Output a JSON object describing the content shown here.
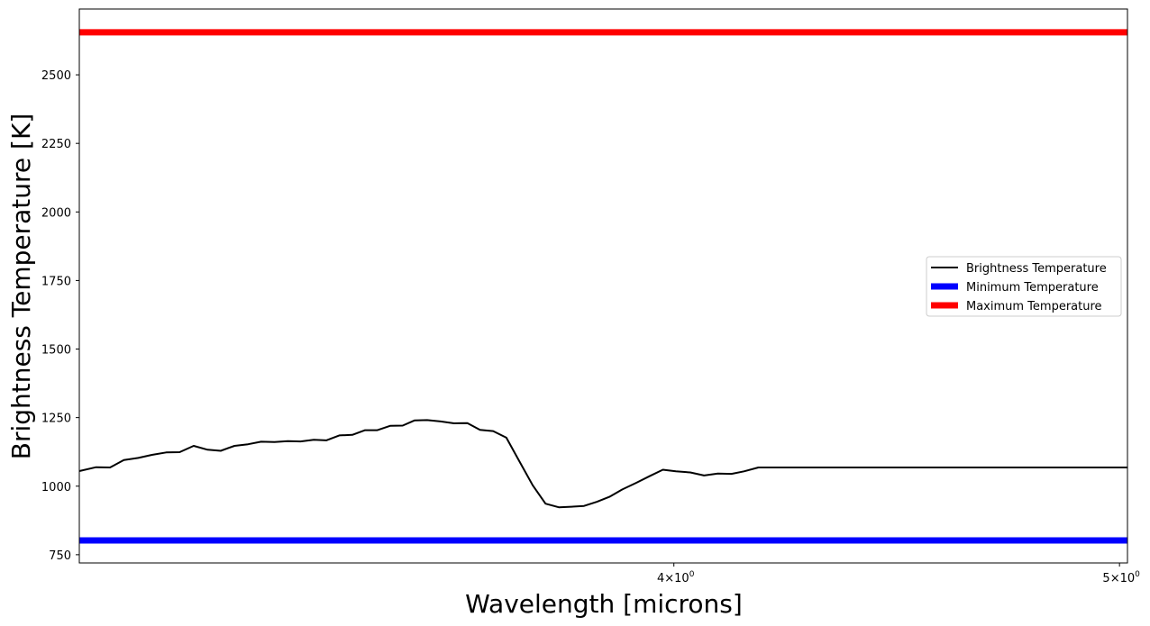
{
  "chart_data": {
    "type": "line",
    "xlabel": "Wavelength [microns]",
    "ylabel": "Brightness Temperature [K]",
    "xscale": "log",
    "xlim": [
      2.97,
      5.02
    ],
    "ylim": [
      720,
      2740
    ],
    "x_ticks": [
      {
        "value": 4,
        "base": "4",
        "exp": "0"
      },
      {
        "value": 5,
        "base": "5",
        "exp": "0"
      }
    ],
    "y_ticks": [
      750,
      1000,
      1250,
      1500,
      1750,
      2000,
      2250,
      2500
    ],
    "grid": false,
    "legend_position": "center-right",
    "series": [
      {
        "name": "Brightness Temperature",
        "color": "#000000",
        "x": [
          2.97,
          2.995,
          3.016,
          3.037,
          3.059,
          3.08,
          3.102,
          3.123,
          3.145,
          3.167,
          3.188,
          3.21,
          3.232,
          3.253,
          3.275,
          3.297,
          3.318,
          3.34,
          3.361,
          3.383,
          3.405,
          3.427,
          3.448,
          3.47,
          3.492,
          3.513,
          3.535,
          3.559,
          3.583,
          3.607,
          3.63,
          3.654,
          3.678,
          3.702,
          3.727,
          3.751,
          3.776,
          3.799,
          3.824,
          3.849,
          3.873,
          3.898,
          3.925,
          3.951,
          3.978,
          4.004,
          4.033,
          4.061,
          4.089,
          4.117,
          4.143,
          4.173,
          4.206,
          4.24,
          4.281,
          4.317,
          4.349,
          4.39,
          4.424,
          4.46,
          4.497,
          4.535,
          4.579,
          4.623,
          4.666,
          4.711,
          4.754,
          4.801,
          4.844,
          4.891,
          4.94,
          4.98,
          5.02
        ],
        "y": [
          1055,
          1069,
          1068,
          1095,
          1103,
          1114,
          1123,
          1124,
          1147,
          1133,
          1129,
          1147,
          1153,
          1162,
          1161,
          1164,
          1163,
          1169,
          1167,
          1185,
          1187,
          1204,
          1204,
          1220,
          1221,
          1240,
          1241,
          1236,
          1229,
          1230,
          1205,
          1201,
          1177,
          1091,
          1003,
          936,
          923,
          925,
          928,
          943,
          961,
          988,
          1012,
          1036,
          1060,
          1054,
          1050,
          1039,
          1046,
          1045,
          1054,
          1068,
          1068,
          1068,
          1068,
          1068,
          1068,
          1068,
          1068,
          1068,
          1068,
          1068,
          1068,
          1068,
          1068,
          1068,
          1068,
          1068,
          1068,
          1068,
          1068,
          1068,
          1068
        ]
      },
      {
        "name": "Minimum Temperature",
        "color": "#0000ff",
        "value": 802
      },
      {
        "name": "Maximum Temperature",
        "color": "#ff0000",
        "value": 2655
      }
    ]
  }
}
